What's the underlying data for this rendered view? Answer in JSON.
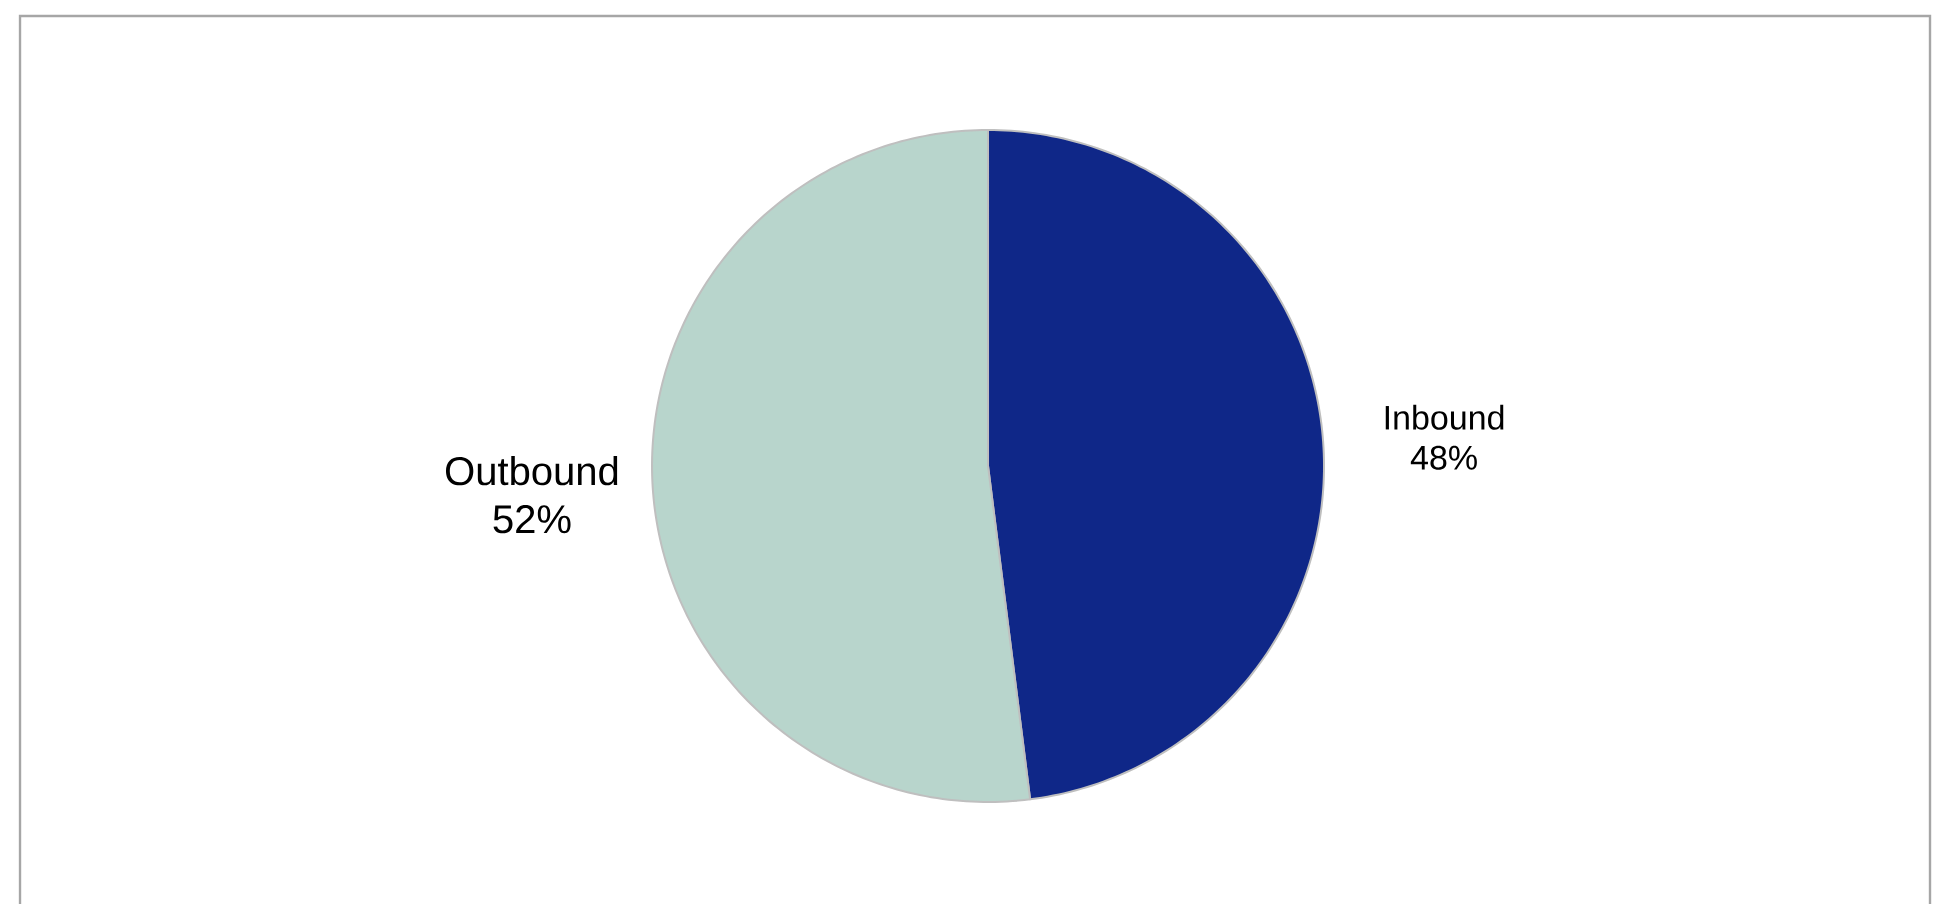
{
  "chart_data": {
    "type": "pie",
    "categories": [
      "Inbound",
      "Outbound"
    ],
    "values": [
      48,
      52
    ],
    "value_labels": [
      "48%",
      "52%"
    ],
    "colors": [
      "#0f2788",
      "#b8d5cc"
    ]
  }
}
